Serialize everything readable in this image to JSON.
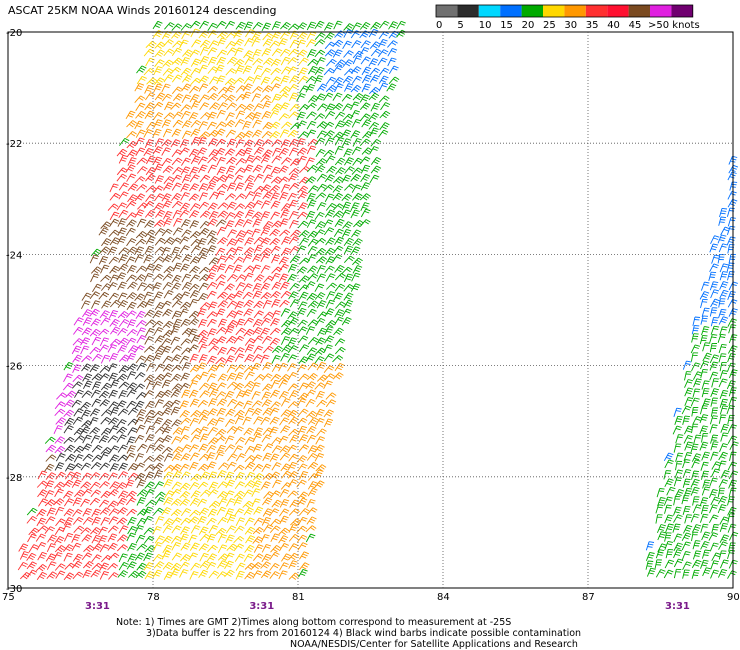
{
  "title": "ASCAT 25KM NOAA Winds 20160124 descending",
  "legend": {
    "ticks": [
      "0",
      "5",
      "10",
      "15",
      "20",
      "25",
      "30",
      "35",
      "40",
      "45",
      ">50 knots"
    ],
    "colors": [
      "#707070",
      "#2c2c2c",
      "#00d8ff",
      "#0070ff",
      "#00aa00",
      "#ffd800",
      "#ff9800",
      "#ff3030",
      "#ff1030",
      "#7a4a20",
      "#e020e0",
      "#700070"
    ]
  },
  "notes": {
    "line1": "Note: 1) Times are GMT 2)Times along bottom correspond to measurement at -25S",
    "line2": "3)Data buffer is 22 hrs from 20160124 4) Black wind barbs indicate possible contamination",
    "line3": "NOAA/NESDIS/Center for Satellite Applications and Research"
  },
  "chart_data": {
    "type": "wind_barb_map",
    "title": "ASCAT 25KM NOAA Winds 20160124 descending",
    "x_ticks": [
      "75",
      "78",
      "81",
      "84",
      "87",
      "90"
    ],
    "y_ticks": [
      "-20",
      "-22",
      "-24",
      "-26",
      "-28",
      "-30"
    ],
    "xlim": [
      75,
      90
    ],
    "ylim": [
      -30,
      -20
    ],
    "grid": true,
    "time_labels": [
      {
        "lon": 76.8,
        "text": "3:31"
      },
      {
        "lon": 80.2,
        "text": "3:31"
      },
      {
        "lon": 88.8,
        "text": "3:31"
      }
    ],
    "speed_bins_knots": [
      0,
      5,
      10,
      15,
      20,
      25,
      30,
      35,
      40,
      45,
      50
    ],
    "swaths": [
      {
        "name_hidden": "west",
        "corners": [
          [
            77.9,
            -19.9
          ],
          [
            83.1,
            -19.9
          ],
          [
            81.0,
            -30.0
          ],
          [
            75.0,
            -30.0
          ]
        ],
        "regions": [
          {
            "color": "#00aa00",
            "lat": [
              -20,
              -22.6
            ],
            "lon_frac": [
              0.62,
              1.0
            ]
          },
          {
            "color": "#0070ff",
            "lat": [
              -20,
              -21.2
            ],
            "lon_frac": [
              0.72,
              1.0
            ]
          },
          {
            "color": "#ffd800",
            "lat": [
              -20,
              -23.0
            ],
            "lon_frac": [
              0.0,
              0.65
            ]
          },
          {
            "color": "#ff9800",
            "lat": [
              -21.0,
              -23.5
            ],
            "lon_frac": [
              0.0,
              0.55
            ]
          },
          {
            "color": "#ff3030",
            "lat": [
              -22.0,
              -26.5
            ],
            "lon_frac": [
              0.0,
              0.75
            ]
          },
          {
            "color": "#7a4a20",
            "lat": [
              -23.5,
              -28.2
            ],
            "lon_frac": [
              0.0,
              0.45
            ]
          },
          {
            "color": "#e020e0",
            "lat": [
              -25.0,
              -27.6
            ],
            "lon_frac": [
              0.0,
              0.25
            ]
          },
          {
            "color": "#2c2c2c",
            "lat": [
              -26.0,
              -28.5
            ],
            "lon_frac": [
              0.05,
              0.3
            ]
          },
          {
            "color": "#ff3030",
            "lat": [
              -28.0,
              -30.0
            ],
            "lon_frac": [
              0.0,
              0.35
            ]
          },
          {
            "color": "#ff9800",
            "lat": [
              -26.0,
              -30.0
            ],
            "lon_frac": [
              0.45,
              1.0
            ]
          },
          {
            "color": "#ffd800",
            "lat": [
              -28.0,
              -30.0
            ],
            "lon_frac": [
              0.45,
              0.8
            ]
          }
        ]
      },
      {
        "name_hidden": "east",
        "corners": [
          [
            90.1,
            -21.5
          ],
          [
            90.1,
            -30.0
          ],
          [
            88.0,
            -30.0
          ]
        ],
        "regions": [
          {
            "color": "#0070ff",
            "lat": [
              -21.5,
              -25.3
            ],
            "lon_frac": [
              0.0,
              1.0
            ]
          },
          {
            "color": "#00aa00",
            "lat": [
              -25.3,
              -30.0
            ],
            "lon_frac": [
              0.0,
              1.0
            ]
          }
        ]
      }
    ]
  }
}
